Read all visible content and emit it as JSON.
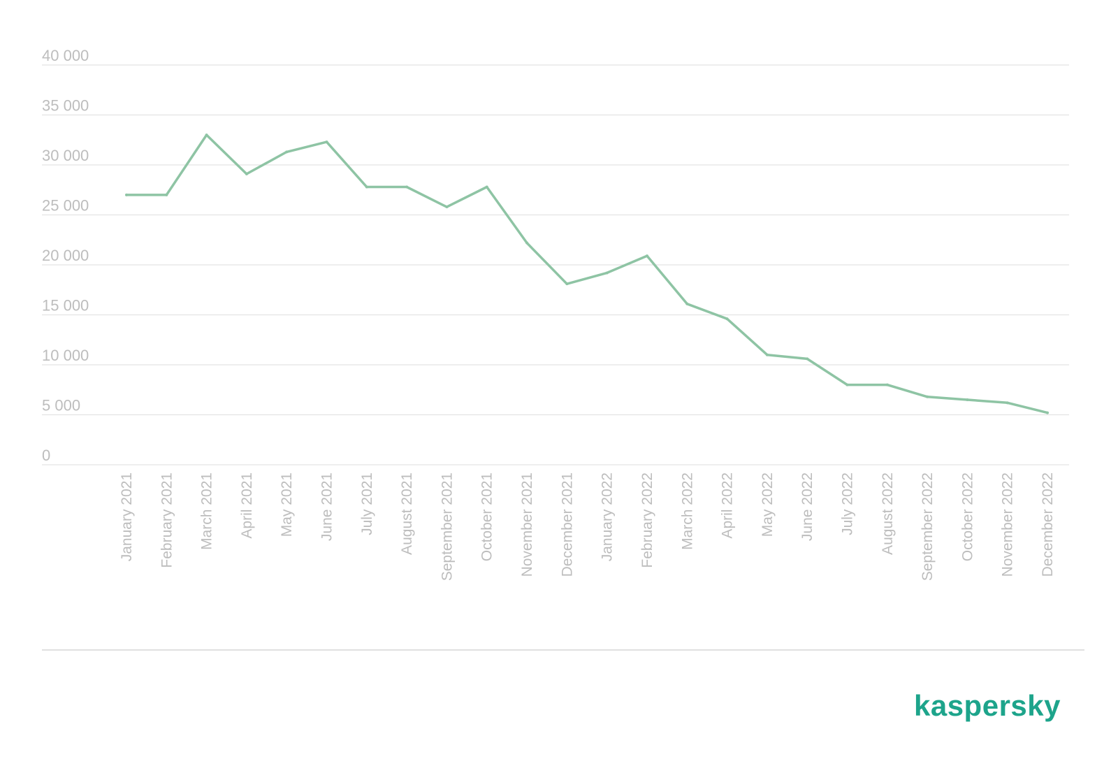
{
  "chart_data": {
    "type": "line",
    "title": "",
    "xlabel": "",
    "ylabel": "",
    "ylim": [
      0,
      40000
    ],
    "yticks": [
      0,
      5000,
      10000,
      15000,
      20000,
      25000,
      30000,
      35000,
      40000
    ],
    "ytick_labels": [
      "0",
      "5 000",
      "10 000",
      "15 000",
      "20 000",
      "25 000",
      "30 000",
      "35 000",
      "40 000"
    ],
    "grid": true,
    "legend": "none",
    "categories": [
      "January 2021",
      "February 2021",
      "March 2021",
      "April 2021",
      "May 2021",
      "June 2021",
      "July 2021",
      "August 2021",
      "September 2021",
      "October 2021",
      "November 2021",
      "December 2021",
      "January 2022",
      "February 2022",
      "March 2022",
      "April 2022",
      "May 2022",
      "June 2022",
      "July 2022",
      "August 2022",
      "September 2022",
      "October 2022",
      "November 2022",
      "December 2022"
    ],
    "series": [
      {
        "color": "#8ec4a4",
        "values": [
          27000,
          27000,
          33000,
          29100,
          31300,
          32300,
          27800,
          27800,
          25800,
          27800,
          22200,
          18100,
          19200,
          20900,
          16100,
          14600,
          11000,
          10600,
          8000,
          8000,
          6800,
          6500,
          6200,
          5200
        ]
      }
    ]
  },
  "colors": {
    "grid": "#e3e3e3",
    "tick_text": "#bdbdbd",
    "line": "#8ec4a4",
    "brand": "#1da48b"
  },
  "branding": {
    "logo_text": "kaspersky"
  }
}
